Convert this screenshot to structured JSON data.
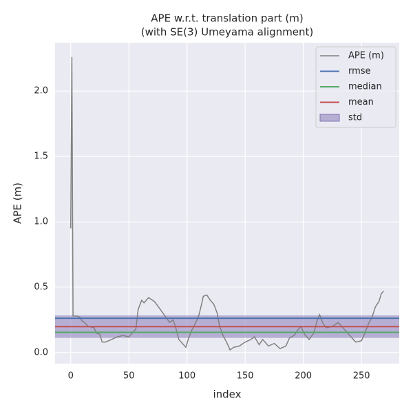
{
  "chart_data": {
    "type": "line",
    "title": "APE w.r.t. translation part (m)",
    "subtitle": "(with SE(3) Umeyama alignment)",
    "x_label": "index",
    "y_label": "APE (m)",
    "xlim": [
      -13.45,
      282.45
    ],
    "ylim": [
      -0.085,
      2.37
    ],
    "xticks": [
      0,
      50,
      100,
      150,
      200,
      250
    ],
    "yticks": [
      {
        "value": 0,
        "label": "0.0"
      },
      0.5,
      {
        "value": 1,
        "label": "1.0"
      },
      1.5,
      {
        "value": 2,
        "label": "2.0"
      }
    ],
    "grid": true,
    "legend": "upper right",
    "series": [
      {
        "name": "APE (m)",
        "color": "#808080",
        "x": [
          0,
          1,
          2,
          5,
          8,
          10,
          12,
          15,
          20,
          22,
          25,
          27,
          30,
          35,
          40,
          45,
          50,
          53,
          56,
          58,
          61,
          63,
          67,
          72,
          77,
          81,
          85,
          88,
          90,
          93,
          96,
          99,
          101,
          104,
          107,
          110,
          112,
          114,
          117,
          120,
          123,
          126,
          128,
          131,
          134,
          137,
          140,
          145,
          150,
          155,
          158,
          162,
          165,
          170,
          175,
          180,
          185,
          188,
          192,
          195,
          198,
          201,
          205,
          209,
          212,
          214,
          217,
          220,
          225,
          230,
          233,
          237,
          241,
          245,
          250,
          253,
          256,
          259,
          262,
          265,
          267,
          269
        ],
        "values": [
          0.95,
          2.26,
          0.28,
          0.28,
          0.27,
          0.24,
          0.23,
          0.2,
          0.19,
          0.15,
          0.14,
          0.08,
          0.08,
          0.1,
          0.12,
          0.13,
          0.12,
          0.15,
          0.18,
          0.33,
          0.4,
          0.38,
          0.42,
          0.39,
          0.33,
          0.28,
          0.23,
          0.25,
          0.2,
          0.1,
          0.07,
          0.04,
          0.1,
          0.17,
          0.22,
          0.28,
          0.35,
          0.43,
          0.44,
          0.4,
          0.37,
          0.3,
          0.2,
          0.13,
          0.08,
          0.02,
          0.04,
          0.05,
          0.08,
          0.1,
          0.12,
          0.06,
          0.1,
          0.05,
          0.07,
          0.03,
          0.05,
          0.11,
          0.13,
          0.17,
          0.2,
          0.14,
          0.1,
          0.15,
          0.25,
          0.29,
          0.22,
          0.19,
          0.2,
          0.23,
          0.2,
          0.16,
          0.12,
          0.08,
          0.09,
          0.15,
          0.22,
          0.27,
          0.35,
          0.39,
          0.45,
          0.47
        ]
      }
    ],
    "stats": [
      {
        "name": "rmse",
        "color": "#4c72b0",
        "value": 0.262
      },
      {
        "name": "median",
        "color": "#55a868",
        "value": 0.155
      },
      {
        "name": "mean",
        "color": "#c44e52",
        "value": 0.198
      }
    ],
    "std": {
      "name": "std",
      "color": "#8172b3",
      "value": 0.086
    }
  }
}
